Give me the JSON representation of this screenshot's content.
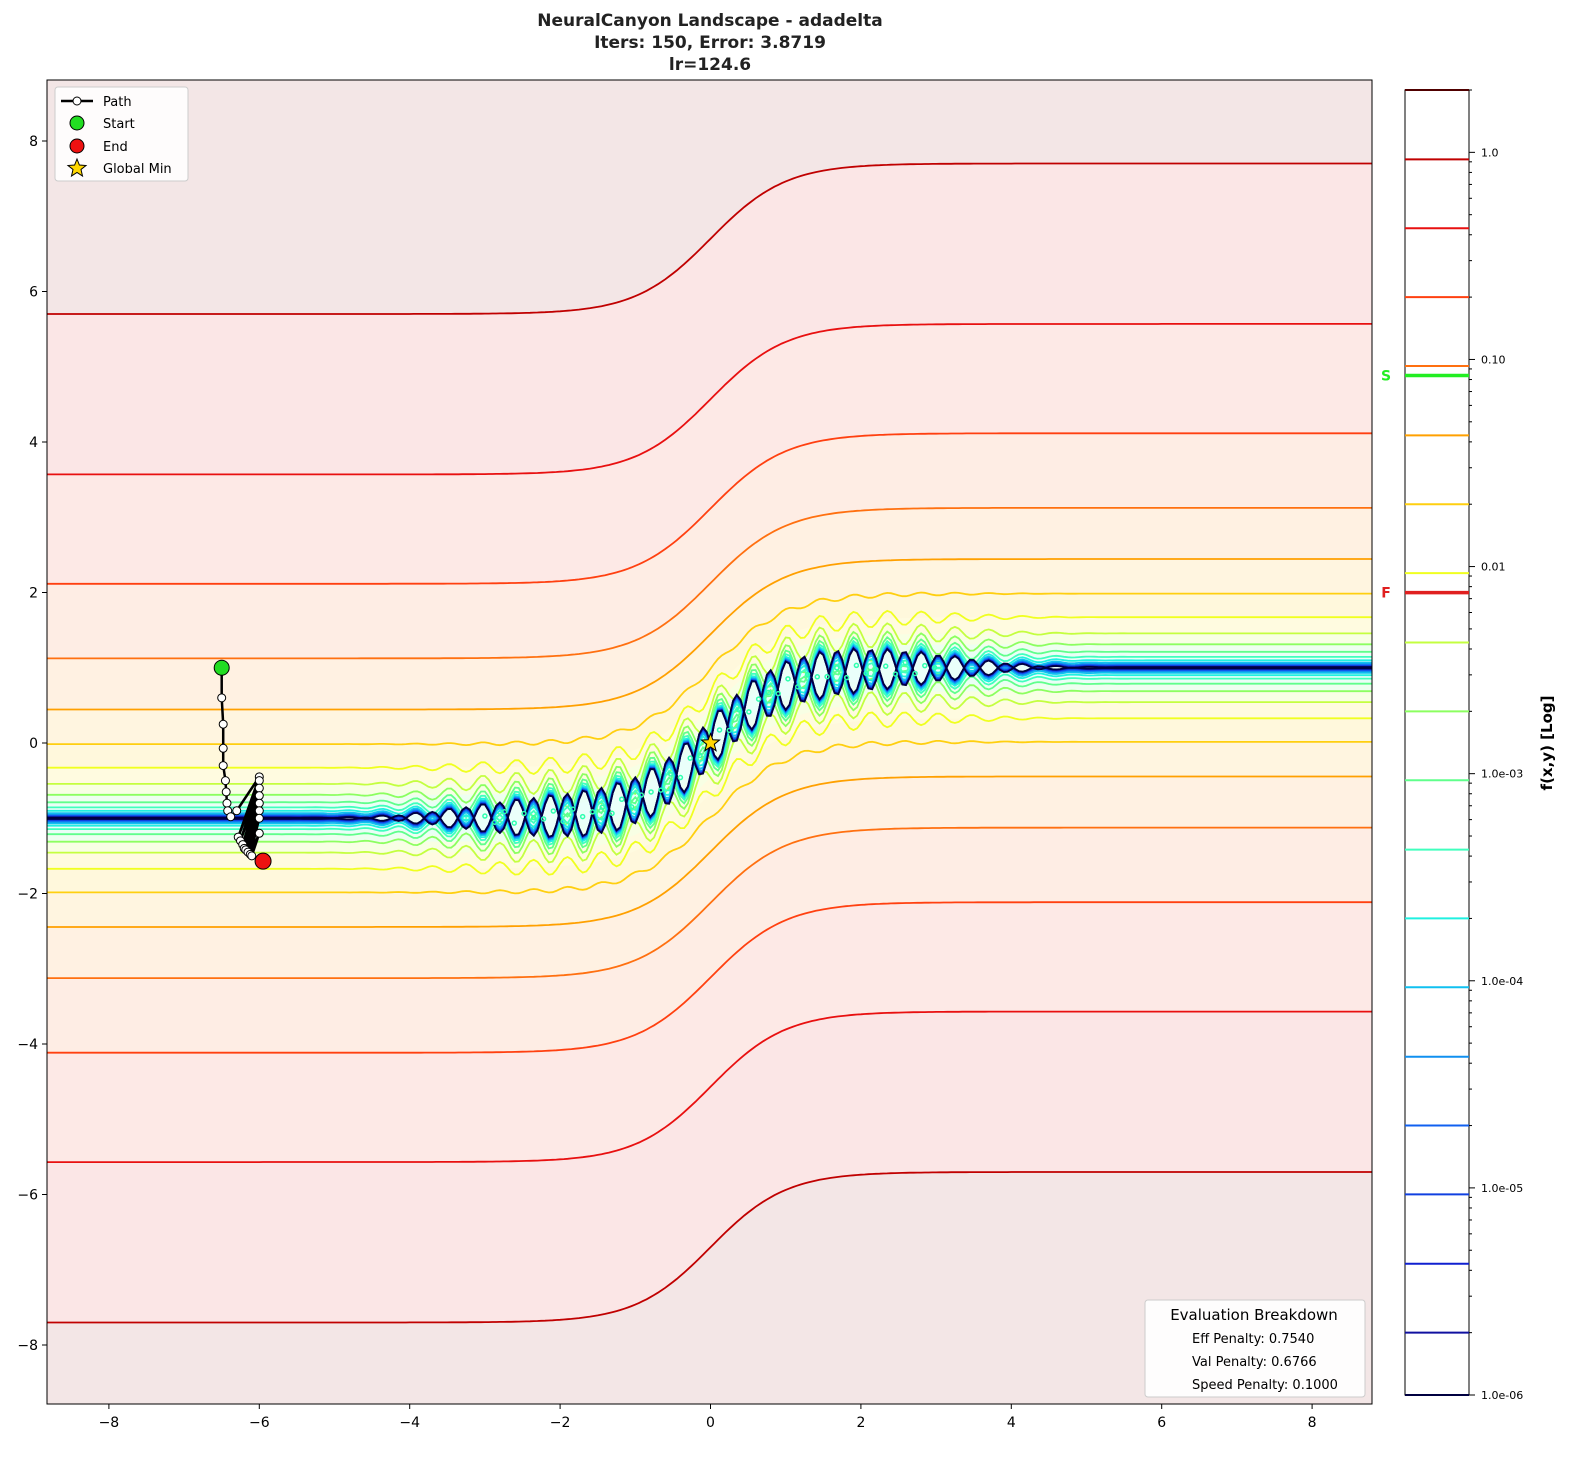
{
  "chart_data": {
    "type": "contour",
    "title": [
      "NeuralCanyon Landscape - adadelta",
      "Iters: 150, Error: 3.8719",
      "lr=124.6"
    ],
    "xlim": [
      -8.8,
      8.8
    ],
    "ylim": [
      -8.8,
      8.8
    ],
    "xticks": [
      -8,
      -6,
      -4,
      -2,
      0,
      2,
      4,
      6,
      8
    ],
    "yticks": [
      -8,
      -6,
      -4,
      -2,
      0,
      2,
      4,
      6,
      8
    ],
    "grid": false,
    "colorbar": {
      "label": "f(x,y) [Log]",
      "scale": "log",
      "range": [
        1e-06,
        2.0
      ],
      "ticks": [
        1.0,
        0.1,
        0.01,
        0.001,
        0.0001,
        1e-05,
        1e-06
      ],
      "tick_labels": [
        "1.0",
        "0.10",
        "0.01",
        "1.0e-03",
        "1.0e-04",
        "1.0e-05",
        "1.0e-06"
      ],
      "markers": [
        {
          "label": "S",
          "value": 0.0837,
          "color": "#22ee22"
        },
        {
          "label": "F",
          "value": 0.00748,
          "color": "#e02020"
        }
      ]
    },
    "levels": [
      2.0,
      0.925,
      0.43,
      0.2,
      0.093,
      0.043,
      0.02,
      0.0093,
      0.0043,
      0.002,
      0.00093,
      0.00043,
      0.0002,
      9.3e-05,
      4.3e-05,
      2e-05,
      9.3e-06,
      4.3e-06,
      2e-06,
      1e-06
    ],
    "level_colors": [
      "#500000",
      "#c00000",
      "#e81010",
      "#ff4010",
      "#ff7010",
      "#ffa000",
      "#ffcf10",
      "#f0ff20",
      "#c4ff40",
      "#8cff60",
      "#60ff8c",
      "#40ffbe",
      "#20f0e0",
      "#10c0f0",
      "#1090f0",
      "#1060f0",
      "#1040e0",
      "#1020d0",
      "#1010a0",
      "#000040"
    ],
    "path": {
      "x": [
        -6.5,
        -6.5,
        -6.48,
        -6.48,
        -6.48,
        -6.45,
        -6.44,
        -6.43,
        -6.42,
        -6.38,
        -6.3,
        -6.0,
        -6.28,
        -6.0,
        -6.25,
        -6.0,
        -6.22,
        -6.0,
        -6.2,
        -6.0,
        -6.18,
        -6.0,
        -6.15,
        -6.0,
        -6.12,
        -6.0,
        -6.1,
        -5.95
      ],
      "y": [
        1.0,
        0.6,
        0.25,
        -0.07,
        -0.3,
        -0.5,
        -0.65,
        -0.8,
        -0.9,
        -0.98,
        -0.9,
        -0.45,
        -1.25,
        -0.5,
        -1.3,
        -0.6,
        -1.35,
        -0.7,
        -1.4,
        -0.8,
        -1.42,
        -0.9,
        -1.45,
        -1.0,
        -1.48,
        -1.2,
        -1.5,
        -1.57
      ]
    },
    "start": {
      "x": -6.5,
      "y": 1.0,
      "color": "#22dd22"
    },
    "end": {
      "x": -5.95,
      "y": -1.57,
      "color": "#ee1111"
    },
    "global_min": {
      "x": 0,
      "y": 0,
      "color": "#ffd700"
    },
    "legend": {
      "placement": "upper-left",
      "entries": [
        "Path",
        "Start",
        "End",
        "Global Min"
      ]
    },
    "evaluation": {
      "title": "Evaluation Breakdown",
      "lines": [
        "Eff Penalty: 0.7540",
        "Val Penalty: 0.6766",
        "Speed Penalty: 0.1000"
      ]
    }
  }
}
